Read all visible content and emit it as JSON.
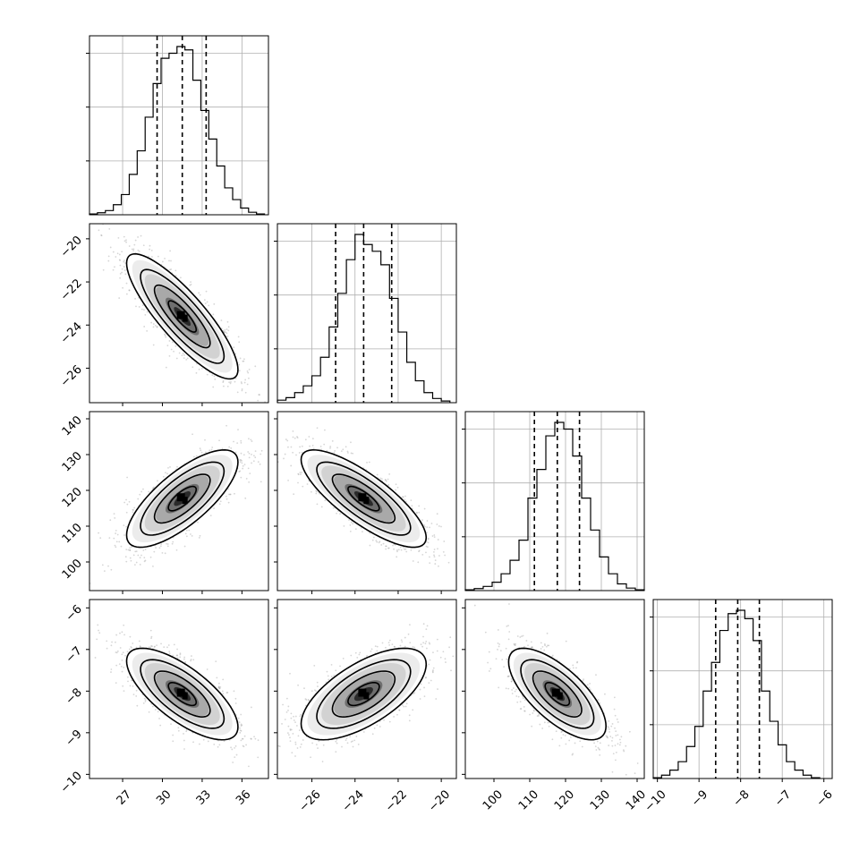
{
  "chart_data": {
    "type": "corner",
    "parameters": [
      {
        "name": "",
        "range": [
          24.5,
          38
        ],
        "ticks": [
          27,
          30,
          33,
          36
        ],
        "tick_labels": [
          "27",
          "30",
          "33",
          "36"
        ],
        "quantiles": [
          29.6,
          31.5,
          33.3
        ],
        "hist_x": [
          24.5,
          25.1,
          25.7,
          26.3,
          26.9,
          27.5,
          28.1,
          28.7,
          29.3,
          29.9,
          30.5,
          31.1,
          31.7,
          32.3,
          32.9,
          33.5,
          34.1,
          34.7,
          35.3,
          35.9,
          36.5,
          37.1
        ],
        "hist_y": [
          0.005,
          0.012,
          0.025,
          0.06,
          0.12,
          0.24,
          0.38,
          0.58,
          0.78,
          0.93,
          0.96,
          1.0,
          0.98,
          0.8,
          0.62,
          0.45,
          0.29,
          0.16,
          0.09,
          0.04,
          0.015,
          0.005
        ]
      },
      {
        "name": "",
        "range": [
          -27.6,
          -19.3
        ],
        "ticks": [
          -26,
          -24,
          -22,
          -20
        ],
        "tick_labels": [
          "−26",
          "−24",
          "−22",
          "−20"
        ],
        "quantiles": [
          -24.9,
          -23.6,
          -22.3
        ],
        "hist_x": [
          -27.6,
          -27.2,
          -26.8,
          -26.4,
          -26.0,
          -25.6,
          -25.2,
          -24.8,
          -24.4,
          -24.0,
          -23.6,
          -23.2,
          -22.8,
          -22.4,
          -22.0,
          -21.6,
          -21.2,
          -20.8,
          -20.4,
          -20.0
        ],
        "hist_y": [
          0.015,
          0.03,
          0.06,
          0.1,
          0.16,
          0.27,
          0.45,
          0.65,
          0.85,
          1.0,
          0.94,
          0.9,
          0.82,
          0.62,
          0.42,
          0.24,
          0.13,
          0.06,
          0.025,
          0.01
        ]
      },
      {
        "name": "",
        "range": [
          92,
          142
        ],
        "ticks": [
          100,
          110,
          120,
          130,
          140
        ],
        "tick_labels": [
          "100",
          "110",
          "120",
          "130",
          "140"
        ],
        "quantiles": [
          111.3,
          117.7,
          123.9
        ],
        "hist_x": [
          92,
          94.5,
          97,
          99.5,
          102,
          104.5,
          107,
          109.5,
          112,
          114.5,
          117,
          119.5,
          122,
          124.5,
          127,
          129.5,
          132,
          134.5,
          137,
          139.5
        ],
        "hist_y": [
          0.005,
          0.012,
          0.025,
          0.05,
          0.1,
          0.18,
          0.3,
          0.55,
          0.72,
          0.92,
          1.0,
          0.96,
          0.8,
          0.55,
          0.36,
          0.2,
          0.1,
          0.04,
          0.015,
          0.005
        ]
      },
      {
        "name": "",
        "range": [
          -10.1,
          -5.8
        ],
        "ticks": [
          -10,
          -9,
          -8,
          -7,
          -6
        ],
        "tick_labels": [
          "−10",
          "−9",
          "−8",
          "−7",
          "−6"
        ],
        "quantiles": [
          -8.6,
          -8.07,
          -7.55
        ],
        "hist_x": [
          -10.1,
          -9.9,
          -9.7,
          -9.5,
          -9.3,
          -9.1,
          -8.9,
          -8.7,
          -8.5,
          -8.3,
          -8.1,
          -7.9,
          -7.7,
          -7.5,
          -7.3,
          -7.1,
          -6.9,
          -6.7,
          -6.5,
          -6.3
        ],
        "hist_y": [
          0.005,
          0.02,
          0.05,
          0.1,
          0.19,
          0.31,
          0.52,
          0.69,
          0.88,
          0.98,
          1.0,
          0.95,
          0.82,
          0.52,
          0.34,
          0.2,
          0.1,
          0.05,
          0.02,
          0.005
        ]
      }
    ],
    "pairs": [
      {
        "x": 0,
        "y": 1,
        "mean": [
          31.5,
          -23.6
        ],
        "sd": [
          2.1,
          1.45
        ],
        "rho": -0.85
      },
      {
        "x": 0,
        "y": 2,
        "mean": [
          31.5,
          117.7
        ],
        "sd": [
          2.1,
          6.8
        ],
        "rho": 0.75
      },
      {
        "x": 1,
        "y": 2,
        "mean": [
          -23.6,
          117.7
        ],
        "sd": [
          1.45,
          6.8
        ],
        "rho": -0.8
      },
      {
        "x": 0,
        "y": 3,
        "mean": [
          31.5,
          -8.07
        ],
        "sd": [
          2.1,
          0.55
        ],
        "rho": -0.72
      },
      {
        "x": 1,
        "y": 3,
        "mean": [
          -23.6,
          -8.07
        ],
        "sd": [
          1.45,
          0.55
        ],
        "rho": 0.65
      },
      {
        "x": 2,
        "y": 3,
        "mean": [
          117.7,
          -8.07
        ],
        "sd": [
          6.8,
          0.55
        ],
        "rho": -0.7
      }
    ],
    "contour_levels_sigma": [
      0.5,
      1.0,
      1.5,
      2.0
    ],
    "grid": true
  }
}
